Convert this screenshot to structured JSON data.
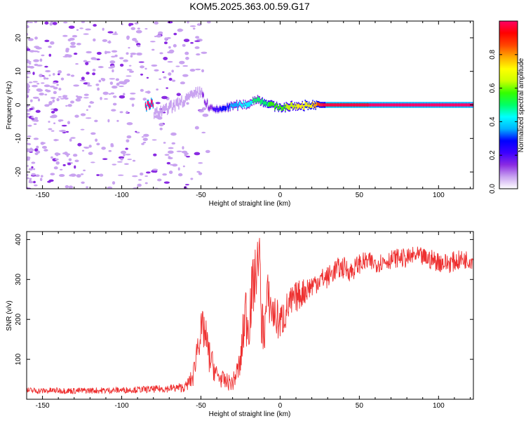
{
  "title": "KOM5.2025.363.00.59.G17",
  "chart_data": [
    {
      "type": "heatmap",
      "xlabel": "Height of straight line (km)",
      "ylabel": "Frequency (Hz)",
      "xlim": [
        -160,
        122
      ],
      "ylim": [
        -25,
        25
      ],
      "x_ticks": [
        -150,
        -100,
        -50,
        0,
        50,
        100
      ],
      "y_ticks": [
        -20,
        -10,
        0,
        10,
        20
      ],
      "colorbar": {
        "label": "Normalized spectral amplitude",
        "range": [
          0,
          1
        ],
        "ticks": [
          "0.0",
          "0.2",
          "0.4",
          "0.6",
          "0.8"
        ],
        "colors": [
          "#ffffff",
          "#c9a3f0",
          "#8a2be2",
          "#3d00ff",
          "#0000ff",
          "#00b3ff",
          "#00ffff",
          "#00ff66",
          "#33ff00",
          "#ccff00",
          "#ffff00",
          "#ffaa00",
          "#ff4400",
          "#ff0000",
          "#ff0066"
        ]
      },
      "ridge": [
        {
          "x": -80,
          "f": -3.0,
          "amp": 0.05
        },
        {
          "x": -70,
          "f": -1.0,
          "amp": 0.07
        },
        {
          "x": -60,
          "f": 1.5,
          "amp": 0.09
        },
        {
          "x": -50,
          "f": 4.0,
          "amp": 0.1
        },
        {
          "x": -45,
          "f": -1.0,
          "amp": 0.14
        },
        {
          "x": -40,
          "f": -1.5,
          "amp": 0.22
        },
        {
          "x": -30,
          "f": -0.3,
          "amp": 0.35
        },
        {
          "x": -20,
          "f": 0.3,
          "amp": 0.45
        },
        {
          "x": -15,
          "f": 1.8,
          "amp": 0.48
        },
        {
          "x": -10,
          "f": 0.8,
          "amp": 0.52
        },
        {
          "x": -5,
          "f": -0.2,
          "amp": 0.55
        },
        {
          "x": 0,
          "f": -0.8,
          "amp": 0.58
        },
        {
          "x": 5,
          "f": -0.5,
          "amp": 0.62
        },
        {
          "x": 10,
          "f": -0.4,
          "amp": 0.68
        },
        {
          "x": 20,
          "f": 0.0,
          "amp": 0.75
        },
        {
          "x": 30,
          "f": 0.0,
          "amp": 0.95
        },
        {
          "x": 122,
          "f": 0.0,
          "amp": 1.0
        }
      ]
    },
    {
      "type": "line",
      "xlabel": "Height of straight line (km)",
      "ylabel": "SNR (v/v)",
      "xlim": [
        -160,
        122
      ],
      "ylim": [
        0,
        420
      ],
      "x_ticks": [
        -150,
        -100,
        -50,
        0,
        50,
        100
      ],
      "y_ticks": [
        100,
        200,
        300,
        400
      ],
      "series": [
        {
          "name": "SNR",
          "color": "#ee3030",
          "x": [
            -160,
            -150,
            -140,
            -130,
            -120,
            -110,
            -100,
            -90,
            -80,
            -70,
            -60,
            -55,
            -52,
            -50,
            -48,
            -45,
            -40,
            -35,
            -30,
            -25,
            -22,
            -20,
            -18,
            -15,
            -13,
            -12,
            -10,
            -8,
            -5,
            0,
            5,
            10,
            15,
            20,
            25,
            30,
            35,
            40,
            45,
            50,
            55,
            60,
            65,
            70,
            75,
            80,
            85,
            90,
            95,
            100,
            105,
            110,
            115,
            122
          ],
          "values": [
            22,
            21,
            22,
            21,
            22,
            22,
            23,
            24,
            25,
            27,
            30,
            55,
            140,
            165,
            175,
            110,
            60,
            45,
            40,
            90,
            220,
            190,
            260,
            320,
            380,
            200,
            170,
            260,
            220,
            190,
            230,
            255,
            270,
            285,
            300,
            305,
            325,
            330,
            320,
            340,
            345,
            340,
            345,
            350,
            355,
            352,
            360,
            355,
            350,
            345,
            340,
            345,
            350,
            350
          ],
          "noise": [
            8,
            8,
            8,
            8,
            8,
            8,
            8,
            8,
            9,
            10,
            12,
            25,
            40,
            50,
            55,
            45,
            25,
            22,
            20,
            40,
            80,
            80,
            80,
            70,
            40,
            70,
            60,
            60,
            55,
            50,
            45,
            40,
            35,
            30,
            28,
            28,
            28,
            28,
            26,
            26,
            25,
            24,
            24,
            24,
            24,
            24,
            24,
            24,
            26,
            26,
            26,
            26,
            24,
            24
          ]
        }
      ]
    }
  ]
}
